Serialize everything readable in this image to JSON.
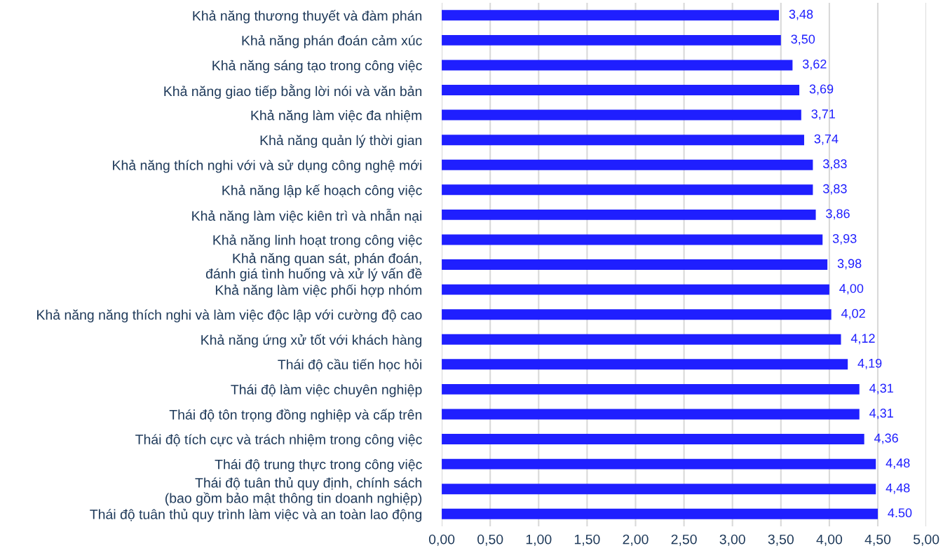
{
  "chart_data": {
    "type": "bar",
    "orientation": "horizontal",
    "categories": [
      "Khả năng thương thuyết và đàm phán",
      "Khả năng phán đoán cảm xúc",
      "Khả năng sáng tạo trong công việc",
      "Khả năng giao tiếp bằng lời nói và văn bản",
      "Khả năng làm việc đa nhiệm",
      "Khả năng quản lý thời gian",
      "Khả năng thích nghi với và sử dụng công nghệ mới",
      "Khả năng lập kế hoạch công việc",
      "Khả năng làm việc kiên trì và nhẫn nại",
      "Khả năng linh hoạt trong công việc",
      "Khả năng quan sát, phán đoán,\nđánh giá tình huống và xử lý vấn đề",
      "Khả năng làm việc phối hợp nhóm",
      "Khả năng năng thích nghi và làm việc độc lập với cường độ cao",
      "Khả năng ứng xử tốt với khách hàng",
      "Thái độ cầu tiến học hỏi",
      "Thái độ làm việc chuyên nghiệp",
      "Thái độ tôn trọng đồng nghiệp và cấp trên",
      "Thái độ tích cực và trách nhiệm trong công việc",
      "Thái độ trung thực trong công việc",
      "Thái độ tuân thủ quy định, chính sách\n(bao gồm bảo mật thông tin doanh nghiệp)",
      "Thái độ tuân thủ quy trình làm việc và an toàn lao động"
    ],
    "values": [
      3.48,
      3.5,
      3.62,
      3.69,
      3.71,
      3.74,
      3.83,
      3.83,
      3.86,
      3.93,
      3.98,
      4.0,
      4.02,
      4.12,
      4.19,
      4.31,
      4.31,
      4.36,
      4.48,
      4.48,
      4.5
    ],
    "value_labels": [
      "3,48",
      "3,50",
      "3,62",
      "3,69",
      "3,71",
      "3,74",
      "3,83",
      "3,83",
      "3,86",
      "3,93",
      "3,98",
      "4,00",
      "4,02",
      "4,12",
      "4,19",
      "4,31",
      "4,31",
      "4,36",
      "4,48",
      "4,48",
      "4.50"
    ],
    "color": "#1f1fff",
    "xlim": [
      0,
      5
    ],
    "xticks": [
      {
        "value": 0,
        "label": "0,00"
      },
      {
        "value": 0.5,
        "label": "0,50"
      },
      {
        "value": 1,
        "label": "1,00"
      },
      {
        "value": 1.5,
        "label": "1,50"
      },
      {
        "value": 2,
        "label": "2,00"
      },
      {
        "value": 2.5,
        "label": "2,50"
      },
      {
        "value": 3,
        "label": "3,00"
      },
      {
        "value": 3.5,
        "label": "3,50"
      },
      {
        "value": 4,
        "label": "4,00"
      },
      {
        "value": 4.5,
        "label": "4,50"
      },
      {
        "value": 5,
        "label": "5,00"
      }
    ],
    "grid": "x"
  }
}
